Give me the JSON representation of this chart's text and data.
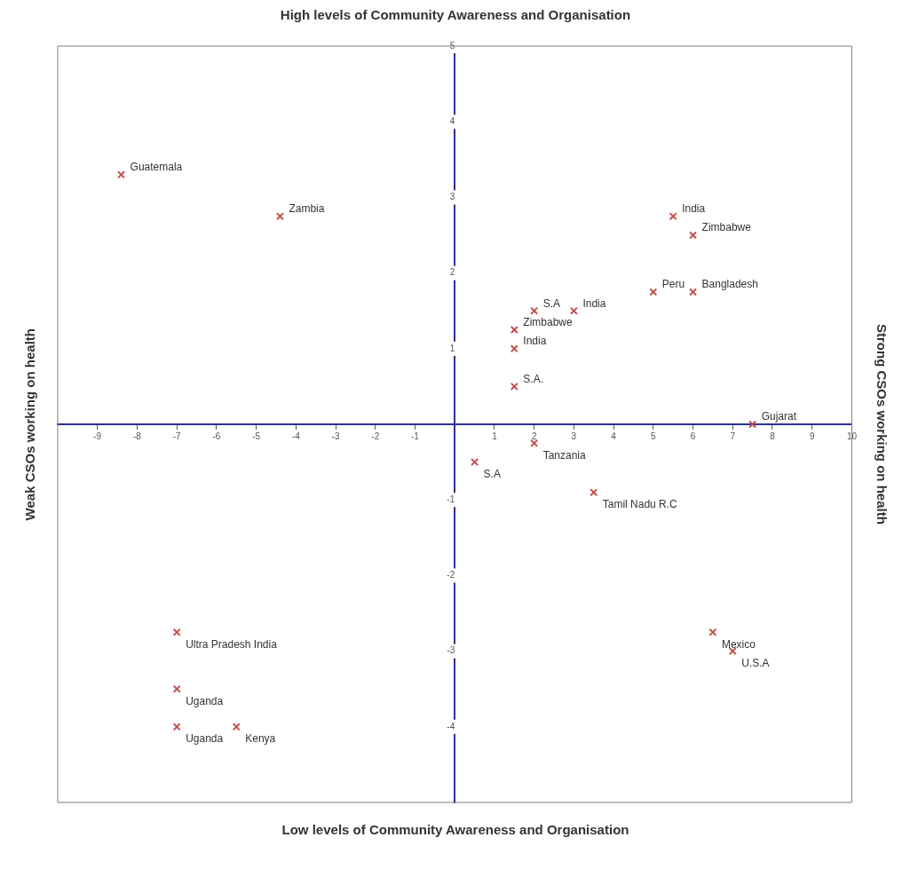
{
  "chart_data": {
    "type": "scatter",
    "title": "High levels of Community Awareness and Organisation",
    "xlabel": "Low levels of Community Awareness and Organisation",
    "ylabel": "Weak CSOs working on health",
    "y2label": "Strong CSOs working on health",
    "series": [
      {
        "color": "#c0504d",
        "x": [
          -8.4,
          -4.4,
          5.5,
          6,
          2,
          3,
          5,
          6,
          1.5,
          1.5,
          1.5,
          7.5,
          2,
          0.5,
          3.5,
          6.5,
          7,
          -7,
          -7,
          -7,
          -5.5
        ],
        "values": [
          3.3,
          2.75,
          2.75,
          2.5,
          1.5,
          1.5,
          1.75,
          1.75,
          1.25,
          1,
          0.5,
          0,
          -0.25,
          -0.5,
          -0.9,
          -2.75,
          -3,
          -2.75,
          -3.5,
          -4,
          -4
        ]
      }
    ],
    "annotations": [
      {
        "text": "Guatemala",
        "x": -8.4,
        "y": 3.3
      },
      {
        "text": "Zambia",
        "x": -4.4,
        "y": 2.75
      },
      {
        "text": "India",
        "x": 5.5,
        "y": 2.75
      },
      {
        "text": "Zimbabwe",
        "x": 6,
        "y": 2.5
      },
      {
        "text": "S.A",
        "x": 2,
        "y": 1.5
      },
      {
        "text": "India",
        "x": 3,
        "y": 1.5
      },
      {
        "text": "Peru",
        "x": 5,
        "y": 1.75
      },
      {
        "text": "Bangladesh",
        "x": 6,
        "y": 1.75
      },
      {
        "text": "Zimbabwe",
        "x": 1.5,
        "y": 1.25
      },
      {
        "text": "India",
        "x": 1.5,
        "y": 1
      },
      {
        "text": "S.A.",
        "x": 1.5,
        "y": 0.5
      },
      {
        "text": "Gujarat",
        "x": 7.5,
        "y": 0
      },
      {
        "text": "Tanzania",
        "x": 2,
        "y": -0.25
      },
      {
        "text": "S.A",
        "x": 0.5,
        "y": -0.5
      },
      {
        "text": "Tamil Nadu R.C",
        "x": 3.5,
        "y": -0.9
      },
      {
        "text": "Mexico",
        "x": 6.5,
        "y": -2.75
      },
      {
        "text": "U.S.A",
        "x": 7,
        "y": -3
      },
      {
        "text": "Ultra Pradesh India",
        "x": -7,
        "y": -2.75
      },
      {
        "text": "Uganda",
        "x": -7,
        "y": -3.5
      },
      {
        "text": "Uganda",
        "x": -7,
        "y": -4
      },
      {
        "text": "Kenya",
        "x": -5.5,
        "y": -4
      }
    ],
    "xlim": [
      -10,
      10
    ],
    "ylim": [
      -5,
      5
    ],
    "xticks": [
      -9,
      -8,
      -7,
      -6,
      -5,
      -4,
      -3,
      -2,
      -1,
      1,
      2,
      3,
      4,
      5,
      6,
      7,
      8,
      9,
      10
    ],
    "yticks": [
      -4,
      -3,
      -2,
      -1,
      1,
      2,
      3,
      4,
      5
    ],
    "grid": false,
    "legend": false,
    "marker": "cross"
  }
}
